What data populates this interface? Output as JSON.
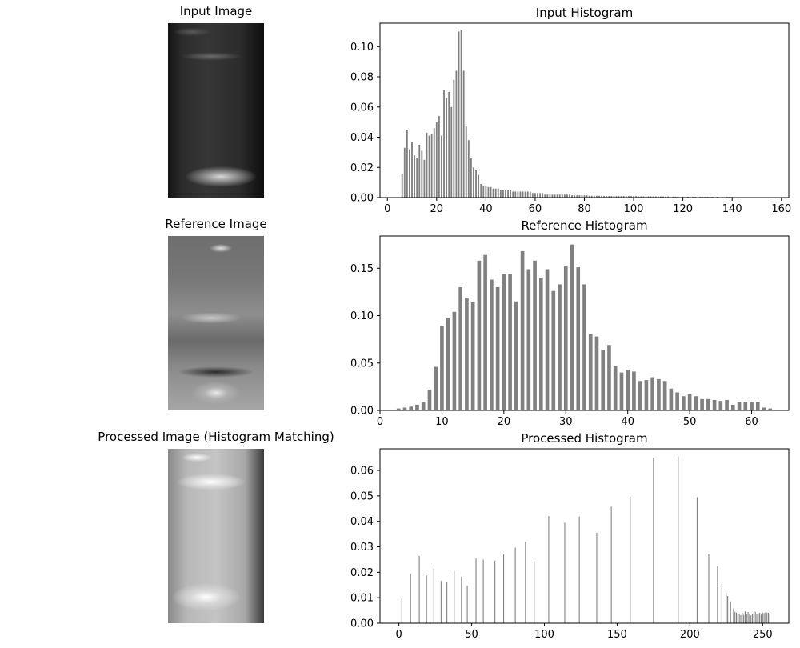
{
  "titles": {
    "input_image": "Input Image",
    "reference_image": "Reference Image",
    "processed_image": "Processed Image (Histogram Matching)"
  },
  "colors": {
    "bar": "#808080"
  },
  "chart_data": [
    {
      "type": "bar",
      "title": "Input Histogram",
      "xlabel": "",
      "ylabel": "",
      "xlim": [
        -3,
        163
      ],
      "ylim": [
        0,
        0.1155
      ],
      "xticks": [
        0,
        20,
        40,
        60,
        80,
        100,
        120,
        140,
        160
      ],
      "yticks": [
        0.0,
        0.02,
        0.04,
        0.06,
        0.08,
        0.1
      ],
      "grid": false,
      "x": [
        6,
        7,
        8,
        9,
        10,
        11,
        12,
        13,
        14,
        15,
        16,
        17,
        18,
        19,
        20,
        21,
        22,
        23,
        24,
        25,
        26,
        27,
        28,
        29,
        30,
        31,
        32,
        33,
        34,
        35,
        36,
        37,
        38,
        39,
        40,
        41,
        42,
        43,
        44,
        45,
        46,
        47,
        48,
        49,
        50,
        51,
        52,
        53,
        54,
        55,
        56,
        57,
        58,
        59,
        60,
        61,
        62,
        63,
        64,
        65,
        66,
        67,
        68,
        69,
        70,
        71,
        72,
        73,
        74,
        75,
        76,
        77,
        78,
        79,
        80,
        81,
        82,
        83,
        84,
        85,
        86,
        87,
        88,
        89,
        90,
        91,
        92,
        93,
        94,
        95,
        96,
        97,
        98,
        99,
        100,
        101,
        102,
        103,
        104,
        105,
        106,
        107,
        108,
        109,
        110,
        111,
        112,
        113,
        114,
        116,
        117,
        118,
        120,
        122,
        124,
        125,
        127,
        128,
        129,
        130,
        131,
        132,
        134,
        138,
        139,
        140
      ],
      "values": [
        0.016,
        0.033,
        0.045,
        0.032,
        0.037,
        0.028,
        0.026,
        0.035,
        0.031,
        0.025,
        0.043,
        0.041,
        0.042,
        0.046,
        0.05,
        0.054,
        0.041,
        0.071,
        0.066,
        0.07,
        0.06,
        0.078,
        0.084,
        0.11,
        0.111,
        0.084,
        0.047,
        0.038,
        0.026,
        0.02,
        0.018,
        0.015,
        0.009,
        0.008,
        0.008,
        0.007,
        0.007,
        0.006,
        0.006,
        0.006,
        0.005,
        0.005,
        0.005,
        0.005,
        0.005,
        0.004,
        0.004,
        0.004,
        0.004,
        0.004,
        0.004,
        0.004,
        0.004,
        0.003,
        0.003,
        0.003,
        0.003,
        0.003,
        0.002,
        0.002,
        0.002,
        0.002,
        0.002,
        0.002,
        0.002,
        0.002,
        0.002,
        0.002,
        0.002,
        0.0015,
        0.0015,
        0.0015,
        0.0015,
        0.0015,
        0.0015,
        0.0015,
        0.0012,
        0.0012,
        0.0012,
        0.0012,
        0.0012,
        0.0012,
        0.001,
        0.001,
        0.001,
        0.001,
        0.001,
        0.001,
        0.001,
        0.001,
        0.001,
        0.001,
        0.001,
        0.001,
        0.001,
        0.001,
        0.0008,
        0.0008,
        0.0008,
        0.0008,
        0.0008,
        0.0008,
        0.0008,
        0.0008,
        0.0008,
        0.0007,
        0.0007,
        0.0007,
        0.0007,
        0.0006,
        0.0006,
        0.0006,
        0.0006,
        0.0006,
        0.0005,
        0.0005,
        0.0005,
        0.0005,
        0.0005,
        0.0005,
        0.0005,
        0.0005,
        0.0005,
        0.0005,
        0.0005,
        0.0005
      ]
    },
    {
      "type": "bar",
      "title": "Reference Histogram",
      "xlabel": "",
      "ylabel": "",
      "xlim": [
        0,
        66
      ],
      "ylim": [
        0,
        0.184
      ],
      "xticks": [
        0,
        10,
        20,
        30,
        40,
        50,
        60
      ],
      "yticks": [
        0.0,
        0.05,
        0.1,
        0.15
      ],
      "grid": false,
      "x": [
        3,
        4,
        5,
        6,
        7,
        8,
        9,
        10,
        11,
        12,
        13,
        14,
        15,
        16,
        17,
        18,
        19,
        20,
        21,
        22,
        23,
        24,
        25,
        26,
        27,
        28,
        29,
        30,
        31,
        32,
        33,
        34,
        35,
        36,
        37,
        38,
        39,
        40,
        41,
        42,
        43,
        44,
        45,
        46,
        47,
        48,
        49,
        50,
        51,
        52,
        53,
        54,
        55,
        56,
        57,
        58,
        59,
        60,
        61,
        62,
        63
      ],
      "values": [
        0.002,
        0.003,
        0.004,
        0.006,
        0.009,
        0.022,
        0.046,
        0.089,
        0.097,
        0.104,
        0.13,
        0.119,
        0.114,
        0.158,
        0.164,
        0.138,
        0.13,
        0.144,
        0.144,
        0.115,
        0.168,
        0.149,
        0.158,
        0.14,
        0.149,
        0.126,
        0.133,
        0.152,
        0.175,
        0.151,
        0.133,
        0.081,
        0.078,
        0.064,
        0.069,
        0.047,
        0.04,
        0.043,
        0.041,
        0.031,
        0.032,
        0.035,
        0.033,
        0.031,
        0.023,
        0.019,
        0.015,
        0.017,
        0.015,
        0.012,
        0.012,
        0.011,
        0.01,
        0.011,
        0.006,
        0.009,
        0.009,
        0.009,
        0.009,
        0.003,
        0.002
      ]
    },
    {
      "type": "bar",
      "title": "Processed Histogram",
      "xlabel": "",
      "ylabel": "",
      "xlim": [
        -13,
        268
      ],
      "ylim": [
        0,
        0.0685
      ],
      "xticks": [
        0,
        50,
        100,
        150,
        200,
        250
      ],
      "yticks": [
        0.0,
        0.01,
        0.02,
        0.03,
        0.04,
        0.05,
        0.06
      ],
      "grid": false,
      "x": [
        0,
        2,
        8,
        14,
        19,
        24,
        29,
        33,
        38,
        43,
        47,
        53,
        58,
        66,
        72,
        80,
        87,
        93,
        103,
        114,
        124,
        136,
        146,
        159,
        175,
        192,
        205,
        213,
        219,
        222,
        225,
        226,
        228,
        230,
        231,
        232,
        233,
        234,
        235,
        236,
        237,
        238,
        239,
        240,
        241,
        242,
        243,
        244,
        245,
        246,
        247,
        248,
        249,
        250,
        251,
        252,
        253,
        254,
        255
      ],
      "values": [
        0.0005,
        0.0097,
        0.0195,
        0.0264,
        0.0188,
        0.0216,
        0.0166,
        0.0161,
        0.0204,
        0.0183,
        0.0147,
        0.0254,
        0.025,
        0.0246,
        0.027,
        0.0297,
        0.032,
        0.0243,
        0.0421,
        0.0395,
        0.0419,
        0.0355,
        0.0458,
        0.0497,
        0.065,
        0.0655,
        0.0495,
        0.0271,
        0.0223,
        0.0154,
        0.0118,
        0.0107,
        0.0086,
        0.0058,
        0.0045,
        0.0042,
        0.0038,
        0.0036,
        0.0032,
        0.0041,
        0.0033,
        0.0046,
        0.0035,
        0.0044,
        0.0037,
        0.0031,
        0.0038,
        0.0042,
        0.0045,
        0.0036,
        0.0039,
        0.0041,
        0.0034,
        0.0042,
        0.004,
        0.0043,
        0.0042,
        0.0041,
        0.0038
      ]
    }
  ]
}
